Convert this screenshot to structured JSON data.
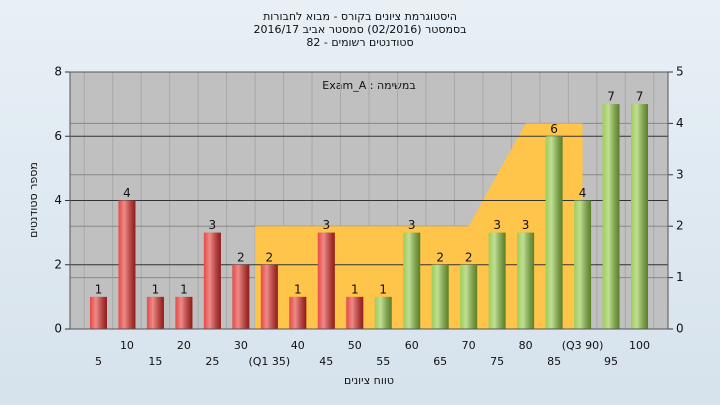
{
  "chart_data": {
    "type": "bar",
    "title": [
      "היסטוגרמת ציונים בקורס - מבוא לחבורות",
      "בסמסטר  (02/2016)  סמסטר אביב 2016/17",
      "סטודנטים רשומים - 82"
    ],
    "annotation": "Exam_A : במשימה",
    "xlabel": "טווח ציונים",
    "ylabel": "מספר סטודנטים",
    "categories": [
      "5",
      "10",
      "15",
      "20",
      "25",
      "30",
      "(Q1 35)",
      "40",
      "45",
      "50",
      "55",
      "60",
      "65",
      "70",
      "75",
      "80",
      "85",
      "(Q3 90)",
      "95",
      "100"
    ],
    "values": [
      1,
      4,
      1,
      1,
      3,
      2,
      2,
      1,
      3,
      1,
      1,
      3,
      2,
      2,
      3,
      3,
      6,
      4,
      7,
      7
    ],
    "colors": [
      "#e02a26",
      "#e02a26",
      "#e02a26",
      "#e02a26",
      "#e02a26",
      "#e02a26",
      "#e02a26",
      "#e02a26",
      "#e02a26",
      "#e02a26",
      "#8cc43c",
      "#8cc43c",
      "#8cc43c",
      "#8cc43c",
      "#8cc43c",
      "#8cc43c",
      "#8cc43c",
      "#8cc43c",
      "#8cc43c",
      "#8cc43c"
    ],
    "series": [
      {
        "type": "area",
        "axis": "y2",
        "color": "#ffc44a",
        "values": [
          null,
          null,
          null,
          null,
          null,
          null,
          2,
          2,
          2,
          2,
          2,
          2,
          2,
          2,
          3,
          4,
          4,
          4,
          null,
          null
        ]
      }
    ],
    "ylim": [
      0,
      8
    ],
    "yticks": [
      0,
      2,
      4,
      6,
      8
    ],
    "y2lim": [
      0,
      5
    ],
    "y2ticks": [
      0,
      1,
      2,
      3,
      4,
      5
    ],
    "grid": true
  }
}
